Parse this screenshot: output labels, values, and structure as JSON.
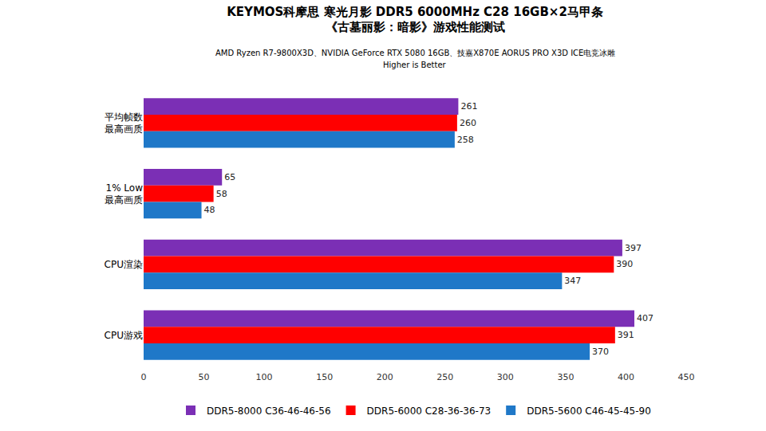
{
  "chart_data": {
    "type": "bar",
    "orientation": "horizontal",
    "title": "KEYMOS科摩思 寒光月影 DDR5 6000MHz C28 16GB×2马甲条\n《古墓丽影：暗影》游戏性能测试",
    "subtitle": "AMD Ryzen R7-9800X3D、NVIDIA GeForce RTX 5080 16GB、技嘉X870E AORUS PRO X3D ICE电竞冰雕\nHigher is Better",
    "categories": [
      "平均帧数\n最高画质",
      "1% Low\n最高画质",
      "CPU渲染",
      "CPU游戏"
    ],
    "series": [
      {
        "name": "DDR5-8000 C36-46-46-56",
        "color": "#7b2fb5",
        "values": [
          261,
          65,
          397,
          407
        ]
      },
      {
        "name": "DDR5-6000 C28-36-36-73",
        "color": "#ff0000",
        "values": [
          260,
          58,
          390,
          391
        ]
      },
      {
        "name": "DDR5-5600 C46-45-45-90",
        "color": "#1f78c8",
        "values": [
          258,
          48,
          347,
          370
        ]
      }
    ],
    "xlim": [
      0,
      450
    ],
    "xticks": [
      0,
      50,
      100,
      150,
      200,
      250,
      300,
      350,
      400,
      450
    ],
    "grid": false,
    "legend": "bottom",
    "data_labels": true
  }
}
